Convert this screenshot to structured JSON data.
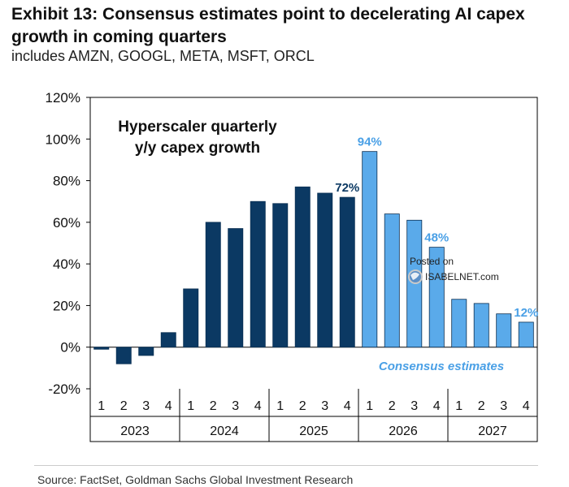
{
  "header": {
    "title": "Exhibit 13: Consensus estimates point to decelerating AI capex growth in coming quarters",
    "subtitle": "includes AMZN, GOOGL, META, MSFT, ORCL"
  },
  "footer": {
    "source": "Source: FactSet, Goldman Sachs Global Investment Research"
  },
  "colors": {
    "actual": "#0b3963",
    "estimate": "#5aaaea",
    "estimate_label": "#4aa0e6",
    "actual_label": "#0b3963"
  },
  "watermark": {
    "line1": "Posted on",
    "line2": "ISABELNET.com",
    "icon": "globe-icon"
  },
  "chart_data": {
    "type": "bar",
    "title": "Hyperscaler quarterly y/y capex growth",
    "annotation": "Consensus estimates",
    "ylim": [
      -20,
      120
    ],
    "yticks": [
      -20,
      0,
      20,
      40,
      60,
      80,
      100,
      120
    ],
    "ytick_labels": [
      "-20%",
      "0%",
      "20%",
      "40%",
      "60%",
      "80%",
      "100%",
      "120%"
    ],
    "categories": [
      "1",
      "2",
      "3",
      "4",
      "1",
      "2",
      "3",
      "4",
      "1",
      "2",
      "3",
      "4",
      "1",
      "2",
      "3",
      "4",
      "1",
      "2",
      "3",
      "4"
    ],
    "years": [
      "2023",
      "2024",
      "2025",
      "2026",
      "2027"
    ],
    "values": [
      -1,
      -8,
      -4,
      7,
      28,
      60,
      57,
      70,
      69,
      77,
      74,
      72,
      94,
      64,
      61,
      48,
      23,
      21,
      16,
      12
    ],
    "estimate": [
      false,
      false,
      false,
      false,
      false,
      false,
      false,
      false,
      false,
      false,
      false,
      false,
      true,
      true,
      true,
      true,
      true,
      true,
      true,
      true
    ],
    "data_labels": [
      {
        "index": 11,
        "text": "72%"
      },
      {
        "index": 12,
        "text": "94%"
      },
      {
        "index": 15,
        "text": "48%"
      },
      {
        "index": 19,
        "text": "12%"
      }
    ],
    "grid": false,
    "legend": "none"
  }
}
